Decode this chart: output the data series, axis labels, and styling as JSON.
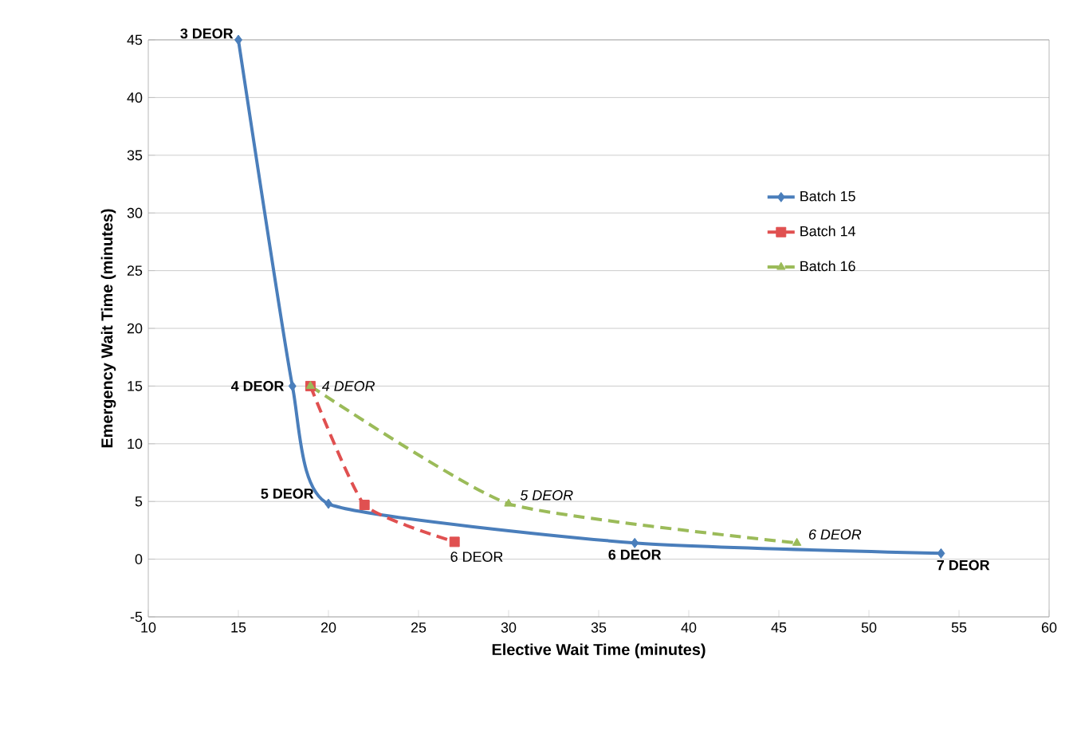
{
  "chart_data": {
    "type": "line",
    "xlabel": "Elective Wait Time (minutes)",
    "ylabel": "Emergency Wait Time (minutes)",
    "xlim": [
      10,
      60
    ],
    "xticks": [
      10,
      15,
      20,
      25,
      30,
      35,
      40,
      45,
      50,
      55,
      60
    ],
    "ylim": [
      -5,
      45
    ],
    "yticks": [
      -5,
      0,
      5,
      10,
      15,
      20,
      25,
      30,
      35,
      40,
      45
    ],
    "grid": "y",
    "legend": "right",
    "series": [
      {
        "name": "Batch 15",
        "color": "#4a7ebb",
        "x": [
          15,
          18,
          20,
          37,
          54
        ],
        "values": [
          45,
          15,
          4.8,
          1.4,
          0.5
        ],
        "marker": "diamond",
        "line_style": "solid"
      },
      {
        "name": "Batch 14",
        "color": "#e05050",
        "x": [
          19,
          22,
          27
        ],
        "values": [
          15,
          4.7,
          1.5
        ],
        "marker": "square",
        "line_style": "dashed"
      },
      {
        "name": "Batch 16",
        "color": "#9bbb59",
        "x": [
          19,
          30,
          46
        ],
        "values": [
          15,
          4.8,
          1.4
        ],
        "marker": "triangle",
        "line_style": "dashed"
      }
    ],
    "annotations": [
      {
        "text": "3 DEOR",
        "x": 15,
        "y": 45
      },
      {
        "text": "4 DEOR",
        "x": 18,
        "y": 15
      },
      {
        "text": "5 DEOR",
        "x": 20,
        "y": 4.8
      },
      {
        "text": "6 DEOR",
        "x": 37,
        "y": 1.4
      },
      {
        "text": "7 DEOR",
        "x": 54,
        "y": 0.5
      },
      {
        "text": "6 DEOR",
        "x": 27,
        "y": 1.5
      },
      {
        "text": "4 DEOR",
        "x": 19,
        "y": 15
      },
      {
        "text": "5 DEOR",
        "x": 30,
        "y": 4.8
      },
      {
        "text": "6 DEOR",
        "x": 46,
        "y": 1.4
      }
    ]
  }
}
